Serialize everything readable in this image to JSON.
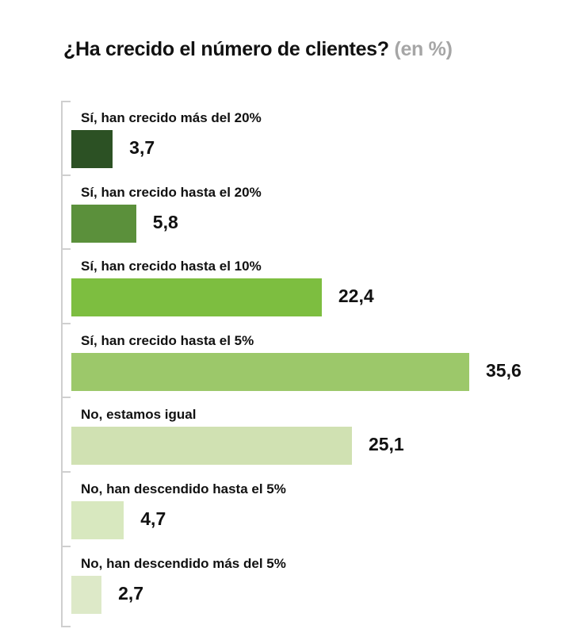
{
  "title": "¿Ha crecido el número de clientes?",
  "unit": "(en %)",
  "colors": [
    "#2c5124",
    "#5b903b",
    "#7dbe40",
    "#9cc86a",
    "#d0e1b2",
    "#d8e8bf",
    "#dde9c8"
  ],
  "chart_data": {
    "type": "bar",
    "orientation": "horizontal",
    "title": "¿Ha crecido el número de clientes?",
    "unit_label": "(en %)",
    "categories": [
      "Sí, han crecido más del 20%",
      "Sí, han crecido hasta el 20%",
      "Sí, han crecido hasta el 10%",
      "Sí, han crecido hasta el 5%",
      "No, estamos igual",
      "No, han descendido hasta el 5%",
      "No, han descendido más del 5%"
    ],
    "values": [
      3.7,
      5.8,
      22.4,
      35.6,
      25.1,
      4.7,
      2.7
    ],
    "value_labels": [
      "3,7",
      "5,8",
      "22,4",
      "35,6",
      "25,1",
      "4,7",
      "2,7"
    ],
    "xlim": [
      0,
      35.6
    ]
  }
}
